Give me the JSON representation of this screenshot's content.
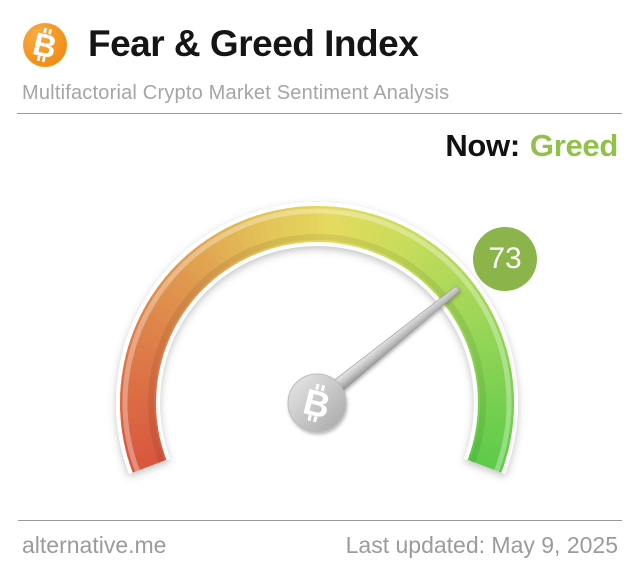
{
  "header": {
    "title": "Fear & Greed Index",
    "subtitle": "Multifactorial Crypto Market Sentiment Analysis",
    "logo_icon": "bitcoin-icon",
    "logo_color": "#f3941f"
  },
  "icons": {
    "bitcoin_glyph": "B"
  },
  "status": {
    "now_label": "Now:",
    "now_value": "Greed",
    "now_value_color": "#92c14a"
  },
  "chart_data": {
    "type": "gauge",
    "title": "Fear & Greed Index",
    "value": 73,
    "value_label": "73",
    "classification": "Greed",
    "min": 0,
    "max": 100,
    "start_angle_deg": 200.7,
    "end_angle_deg": -20.7,
    "badge_color": "#8bb44a",
    "needle_color": "#b5b5b5",
    "hub_icon": "bitcoin-icon",
    "gradient_stops": [
      {
        "t": 0.0,
        "color": "#d8563e"
      },
      {
        "t": 0.12,
        "color": "#dc7045"
      },
      {
        "t": 0.28,
        "color": "#e0964e"
      },
      {
        "t": 0.42,
        "color": "#e3c257"
      },
      {
        "t": 0.52,
        "color": "#e5da5f"
      },
      {
        "t": 0.63,
        "color": "#c8dc5a"
      },
      {
        "t": 0.78,
        "color": "#9cd658"
      },
      {
        "t": 1.0,
        "color": "#5ccb4a"
      }
    ]
  },
  "footer": {
    "brand": "alternative.me",
    "last_updated": "Last updated: May 9, 2025"
  }
}
